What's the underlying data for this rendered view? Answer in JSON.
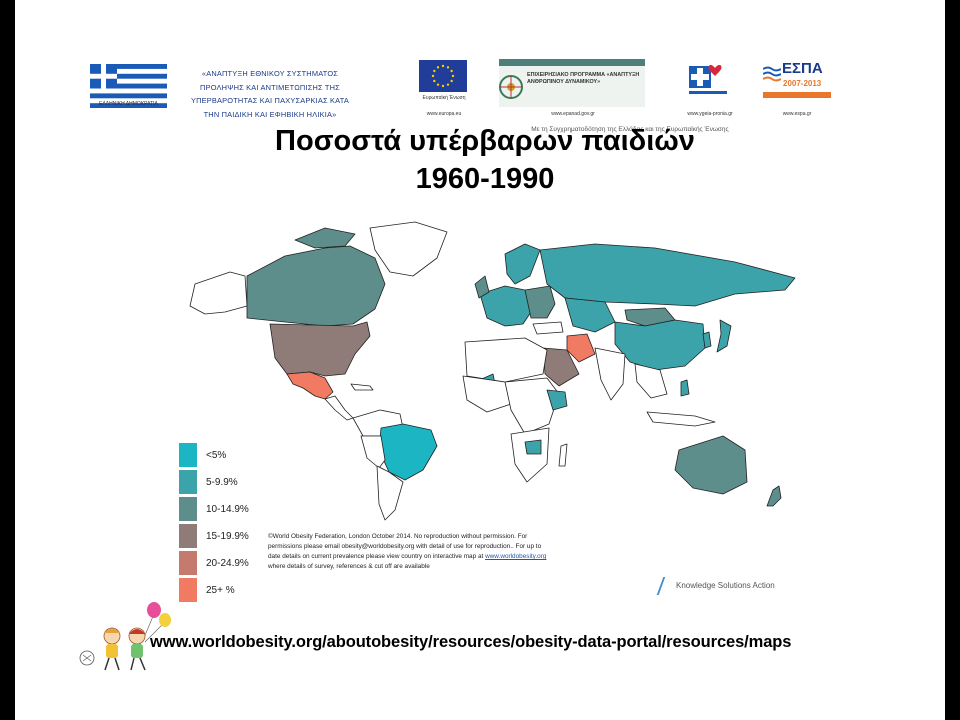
{
  "header": {
    "flag_caption": "ΕΛΛΗΝΙΚΗ ΔΗΜΟΚΡΑΤΙΑ",
    "program_lines": [
      "«ΑΝΑΠΤΥΞΗ ΕΘΝΙΚΟΥ ΣΥΣΤΗΜΑΤΟΣ",
      "ΠΡΟΛΗΨΗΣ ΚΑΙ ΑΝΤΙΜΕΤΩΠΙΣΗΣ ΤΗΣ",
      "ΥΠΕΡΒΑΡΟΤΗΤΑΣ ΚΑΙ ΠΑΧΥΣΑΡΚΙΑΣ ΚΑΤΑ",
      "ΤΗΝ ΠΑΙΔΙΚΗ ΚΑΙ ΕΦΗΒΙΚΗ ΗΛΙΚΙΑ»"
    ],
    "eu_caption": "Ευρωπαϊκή Ένωση",
    "eu_url": "www.europa.eu",
    "op_logo_text": "ΕΠΙΧΕΙΡΗΣΙΑΚΟ ΠΡΟΓΡΑΜΜΑ «ΑΝΑΠΤΥΞΗ ΑΝΘΡΩΠΙΝΟΥ ΔΥΝΑΜΙΚΟΥ»",
    "op_url": "www.epanad.gov.gr",
    "op_cofinance": "Με τη Συγχρηματοδότηση της Ελλάδας και της Ευρωπαϊκής Ένωσης",
    "ministry_url": "www.ygeia-pronia.gr",
    "espa_title": "ΕΣΠΑ",
    "espa_years": "2007-2013",
    "espa_url": "www.espa.gr"
  },
  "title": {
    "line1": "Ποσοστά υπέρβαρων παιδιών",
    "line2": "1960-1990"
  },
  "legend": [
    {
      "label": "<5%",
      "color": "#1bb5c4"
    },
    {
      "label": "5-9.9%",
      "color": "#3ba3a9"
    },
    {
      "label": "10-14.9%",
      "color": "#5e8e8c"
    },
    {
      "label": "15-19.9%",
      "color": "#8f7b77"
    },
    {
      "label": "20-24.9%",
      "color": "#c47a6c"
    },
    {
      "label": "25+ %",
      "color": "#f17a62"
    }
  ],
  "copyright": {
    "line1": "©World Obesity Federation, London October 2014.   No reproduction without permission.  For",
    "line2": "permissions please email obesity@worldobesity.org with detail of use for reproduction..  For up to",
    "line3_pre": "date details on current prevalence please view country on interactive map at ",
    "line3_link": "www.worldobesity.org",
    "line4": "where details of survey, references & cut off are available"
  },
  "ksa_text": "Knowledge Solutions Action",
  "footer_url": "www.worldobesity.org/aboutobesity/resources/obesity-data-portal/resources/maps"
}
